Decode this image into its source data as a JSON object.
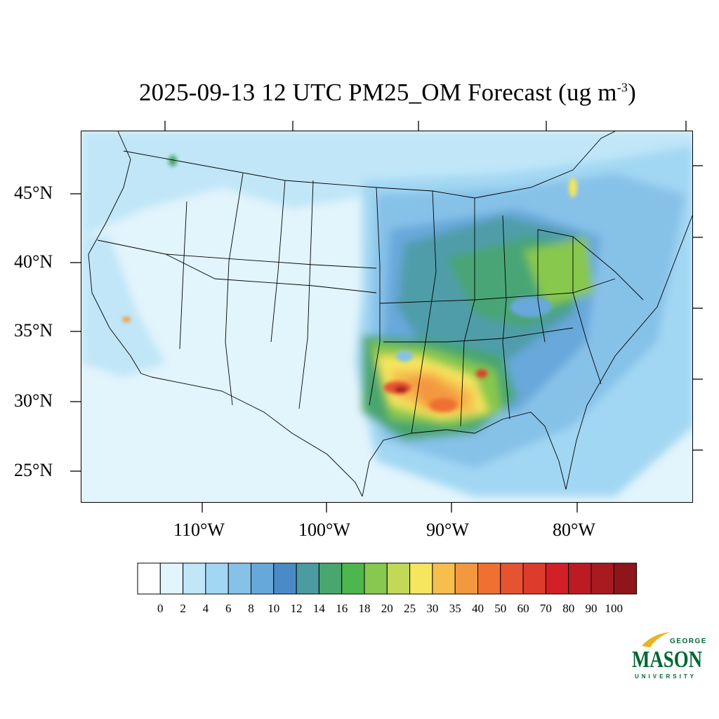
{
  "title": {
    "text": "2025-09-13 12 UTC PM25_OM Forecast (ug m",
    "exponent": "-3",
    "closing": ")"
  },
  "map": {
    "latitude_labels": [
      "45°N",
      "40°N",
      "35°N",
      "30°N",
      "25°N"
    ],
    "longitude_labels": [
      "110°W",
      "100°W",
      "90°W",
      "80°W"
    ],
    "variable": "PM25_OM",
    "units": "ug m-3"
  },
  "colorbar": {
    "labels": [
      "0",
      "2",
      "4",
      "6",
      "8",
      "10",
      "12",
      "14",
      "16",
      "18",
      "20",
      "25",
      "30",
      "35",
      "40",
      "50",
      "60",
      "70",
      "80",
      "90",
      "100"
    ],
    "colors": [
      "#ffffff",
      "#e2f4fc",
      "#c0e6f8",
      "#a2d7f3",
      "#86c1e8",
      "#67a8da",
      "#4a8bc7",
      "#4b9ba0",
      "#48a66e",
      "#4db64c",
      "#87c84e",
      "#c2d958",
      "#f6e55e",
      "#f7be4e",
      "#f4983f",
      "#f07032",
      "#e65330",
      "#dd3b2b",
      "#d21f28",
      "#bb1c23",
      "#a81a20",
      "#8e1519"
    ]
  },
  "logo": {
    "top": "GEORGE",
    "main": "MASON",
    "bottom": "UNIVERSITY",
    "colors": {
      "green": "#006633",
      "gold": "#e8b41d"
    }
  }
}
